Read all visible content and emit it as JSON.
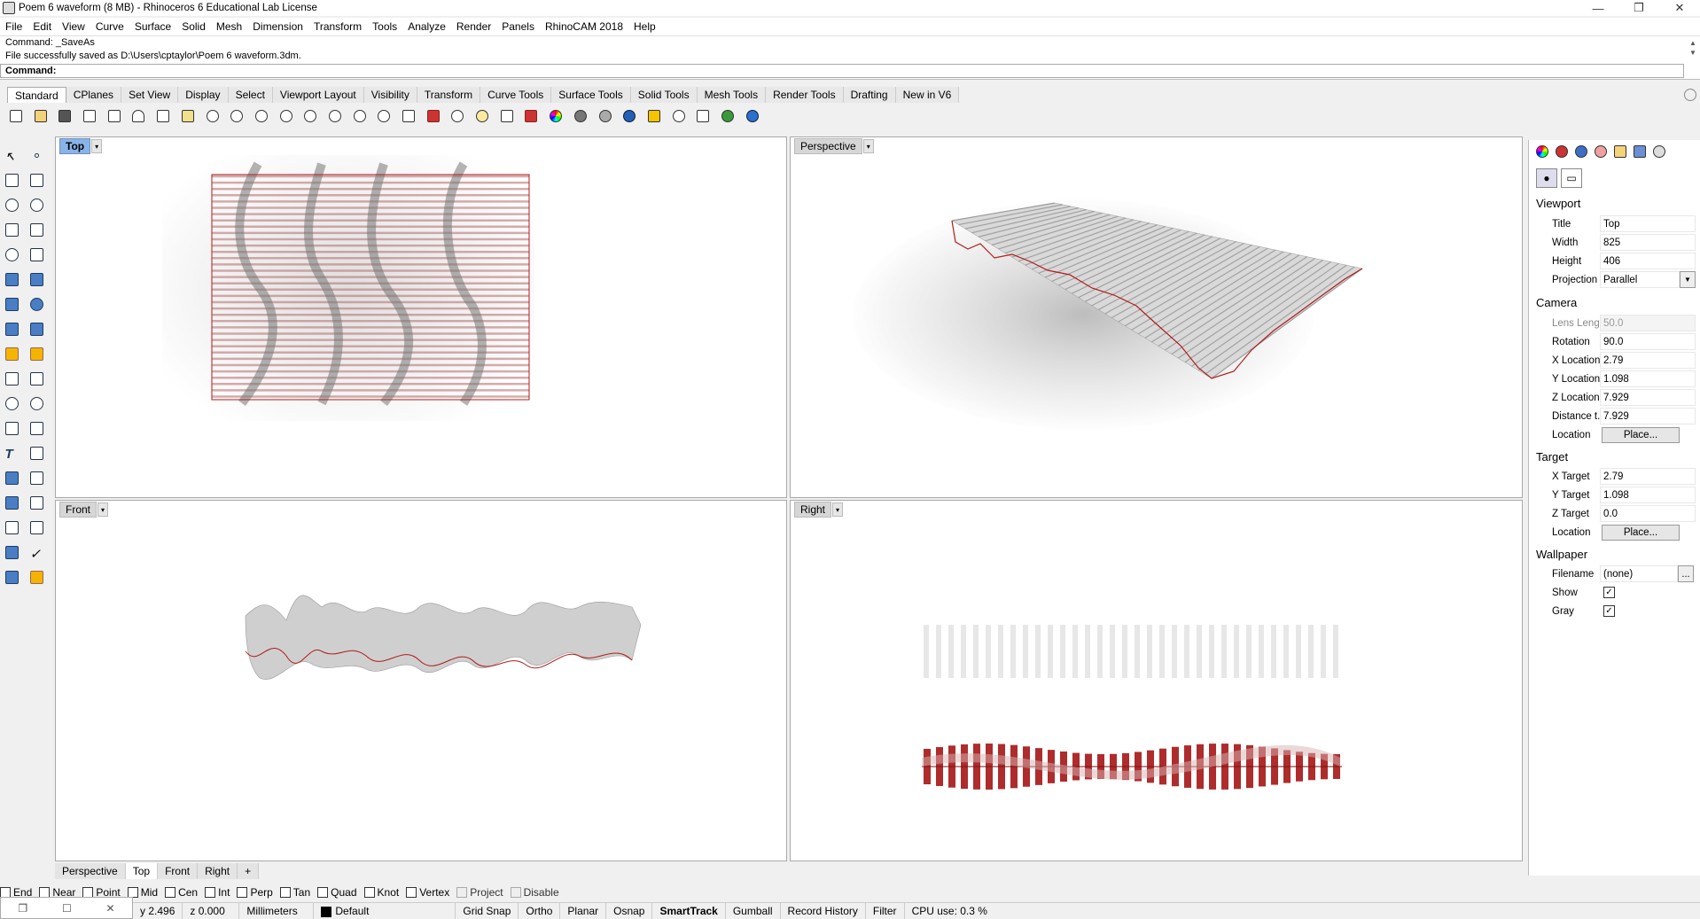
{
  "window": {
    "title": "Poem 6 waveform (8 MB) - Rhinoceros 6 Educational Lab License",
    "min": "—",
    "max": "❐",
    "close": "✕"
  },
  "menu": [
    "File",
    "Edit",
    "View",
    "Curve",
    "Surface",
    "Solid",
    "Mesh",
    "Dimension",
    "Transform",
    "Tools",
    "Analyze",
    "Render",
    "Panels",
    "RhinoCAM 2018",
    "Help"
  ],
  "command_history": [
    "Command: _SaveAs",
    "File successfully saved as D:\\Users\\cptaylor\\Poem 6 waveform.3dm."
  ],
  "command_prompt": "Command:",
  "toolbar_tabs": [
    "Standard",
    "CPlanes",
    "Set View",
    "Display",
    "Select",
    "Viewport Layout",
    "Visibility",
    "Transform",
    "Curve Tools",
    "Surface Tools",
    "Solid Tools",
    "Mesh Tools",
    "Render Tools",
    "Drafting",
    "New in V6"
  ],
  "toolbar_icons": [
    "new-icon",
    "open-icon",
    "save-icon",
    "print-icon",
    "import-icon",
    "cut-icon",
    "copy-icon",
    "paste-icon",
    "undo-icon",
    "pan-icon",
    "rotate-view-icon",
    "zoom-icon",
    "zoom-extents-icon",
    "zoom-window-icon",
    "zoom-selected-icon",
    "zoom-all-icon",
    "four-viewports-icon",
    "car-icon",
    "properties-icon",
    "lightbulb-icon",
    "lock-icon",
    "materials-icon",
    "color-icon",
    "shade-icon",
    "render-icon",
    "sphere-icon",
    "select-icon",
    "options-icon",
    "grid-icon",
    "globe-icon",
    "help-icon"
  ],
  "viewports": {
    "top": "Top",
    "perspective": "Perspective",
    "front": "Front",
    "right": "Right",
    "dropdown": "▾"
  },
  "viewport_tabs": [
    "Perspective",
    "Top",
    "Front",
    "Right",
    "+"
  ],
  "panel": {
    "viewport_section": "Viewport",
    "title_label": "Title",
    "title_value": "Top",
    "width_label": "Width",
    "width_value": "825",
    "height_label": "Height",
    "height_value": "406",
    "projection_label": "Projection",
    "projection_value": "Parallel",
    "camera_section": "Camera",
    "lens_label": "Lens Length",
    "lens_value": "50.0",
    "rotation_label": "Rotation",
    "rotation_value": "90.0",
    "xloc_label": "X Location",
    "xloc_value": "2.79",
    "yloc_label": "Y Location",
    "yloc_value": "1.098",
    "zloc_label": "Z Location",
    "zloc_value": "7.929",
    "dist_label": "Distance t...",
    "dist_value": "7.929",
    "loc_label": "Location",
    "place_button": "Place...",
    "target_section": "Target",
    "xt_label": "X Target",
    "xt_value": "2.79",
    "yt_label": "Y Target",
    "yt_value": "1.098",
    "zt_label": "Z Target",
    "zt_value": "0.0",
    "tloc_label": "Location",
    "tplace_button": "Place...",
    "wallpaper_section": "Wallpaper",
    "filename_label": "Filename",
    "filename_value": "(none)",
    "browse_button": "...",
    "show_label": "Show",
    "show_check": "✓",
    "gray_label": "Gray",
    "gray_check": "✓"
  },
  "osnaps": [
    "End",
    "Near",
    "Point",
    "Mid",
    "Cen",
    "Int",
    "Perp",
    "Tan",
    "Quad",
    "Knot",
    "Vertex",
    "Project",
    "Disable"
  ],
  "status": {
    "y": "y 2.496",
    "z": "z 0.000",
    "units": "Millimeters",
    "layer": "Default",
    "grid_snap": "Grid Snap",
    "ortho": "Ortho",
    "planar": "Planar",
    "osnap": "Osnap",
    "smarttrack": "SmartTrack",
    "gumball": "Gumball",
    "record_history": "Record History",
    "filter": "Filter",
    "cpu": "CPU use: 0.3 %"
  },
  "colors": {
    "active_viewport_label": "#8ab4e8",
    "section_red": "#b01c1c",
    "wave_gray": "#c8c8c8"
  }
}
